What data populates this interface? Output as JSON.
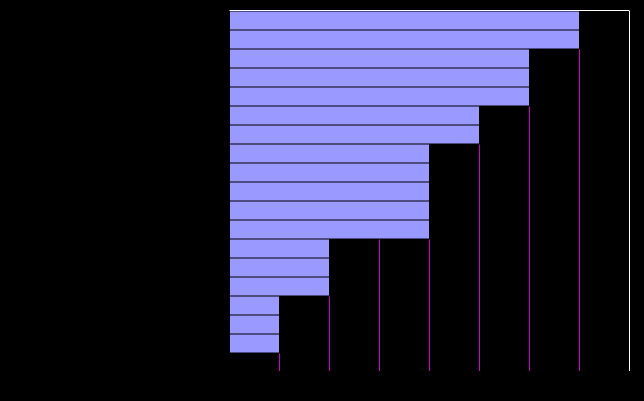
{
  "chart_data": {
    "type": "bar",
    "orientation": "horizontal",
    "categories": [
      "",
      "",
      "",
      "",
      "",
      "",
      "",
      "",
      "",
      "",
      "",
      "",
      "",
      "",
      "",
      "",
      "",
      "",
      ""
    ],
    "values": [
      7,
      7,
      6,
      6,
      6,
      5,
      5,
      4,
      4,
      4,
      4,
      4,
      2,
      2,
      2,
      1,
      1,
      1,
      0
    ],
    "xlim": [
      0,
      8
    ],
    "title": "",
    "xlabel": "",
    "ylabel": "",
    "grid": true,
    "colors": {
      "background": "#000000",
      "bar_fill": "#9999ff",
      "bar_stroke": "#000000",
      "grid": "#cc00cc",
      "axis": "#ffffff"
    }
  }
}
